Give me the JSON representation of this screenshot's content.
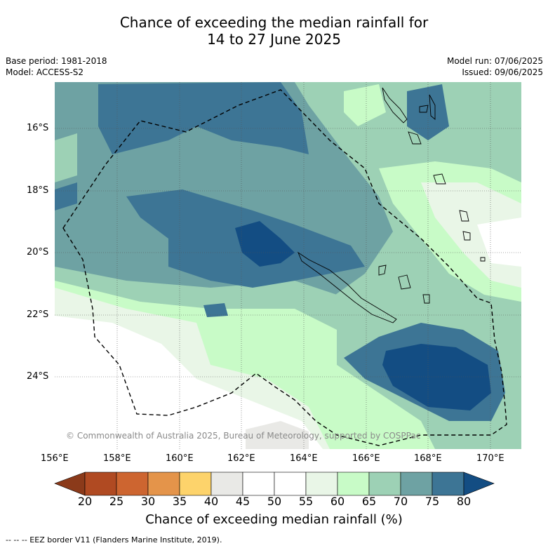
{
  "title": {
    "line1": "Chance of exceeding the median rainfall for",
    "line2": "14 to 27 June 2025"
  },
  "meta": {
    "base_period": "Base period: 1981-2018",
    "model": "Model: ACCESS-S2",
    "model_run": "Model run: 07/06/2025",
    "issued": "Issued: 09/06/2025"
  },
  "axes": {
    "lat_labels": [
      "16°S",
      "18°S",
      "20°S",
      "22°S",
      "24°S"
    ],
    "lon_labels": [
      "156°E",
      "158°E",
      "160°E",
      "162°E",
      "164°E",
      "166°E",
      "168°E",
      "170°E"
    ]
  },
  "copyright": "© Commonwealth of Australia 2025, Bureau of Meteorology, supported by COSPPac",
  "colorbar": {
    "title": "Chance of exceeding median rainfall (%)",
    "ticks": [
      "20",
      "25",
      "30",
      "35",
      "40",
      "45",
      "50",
      "55",
      "60",
      "65",
      "70",
      "75",
      "80"
    ],
    "colors": [
      "#8b3a1a",
      "#b04a22",
      "#cd6530",
      "#e4944a",
      "#fdd36b",
      "#e9e9e6",
      "#ffffff",
      "#ffffff",
      "#e9f6e7",
      "#c8fbc7",
      "#9dd1b5",
      "#6ea2a3",
      "#3d7595",
      "#134d83"
    ]
  },
  "legend_note": "-- -- -- EEZ border V11 (Flanders Marine Institute, 2019)."
}
